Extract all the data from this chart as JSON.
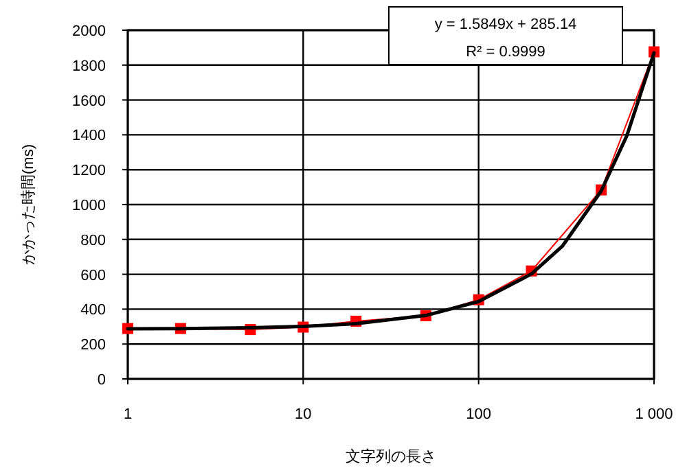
{
  "chart_data": {
    "type": "line",
    "xlabel": "文字列の長さ",
    "ylabel": "かかった時間(ms)",
    "log": "x",
    "xlim": [
      1,
      1000
    ],
    "xticks": [
      1,
      10,
      100,
      {
        "value": 1000,
        "label": "1 000"
      }
    ],
    "ylim": [
      0,
      2000
    ],
    "yticks": [
      0,
      200,
      400,
      600,
      800,
      1000,
      1200,
      1400,
      1600,
      1800,
      2000
    ],
    "grid": true,
    "x": [
      1,
      2,
      5,
      10,
      20,
      50,
      100,
      200,
      500,
      1000
    ],
    "series": [
      {
        "color": "#ff0000",
        "marker": "square",
        "values": [
          289,
          289,
          283,
          297,
          331,
          362,
          454,
          619,
          1084,
          1876
        ]
      },
      {
        "color": "#000000",
        "marker": "none",
        "x": [
          1,
          2,
          5,
          10,
          20,
          50,
          100,
          200,
          300,
          500,
          700,
          1000
        ],
        "values": [
          287,
          288,
          293,
          301,
          317,
          364,
          444,
          602,
          761,
          1078,
          1395,
          1870
        ]
      }
    ],
    "annotations": [
      "y = 1.5849x + 285.14",
      "R² = 0.9999"
    ]
  }
}
